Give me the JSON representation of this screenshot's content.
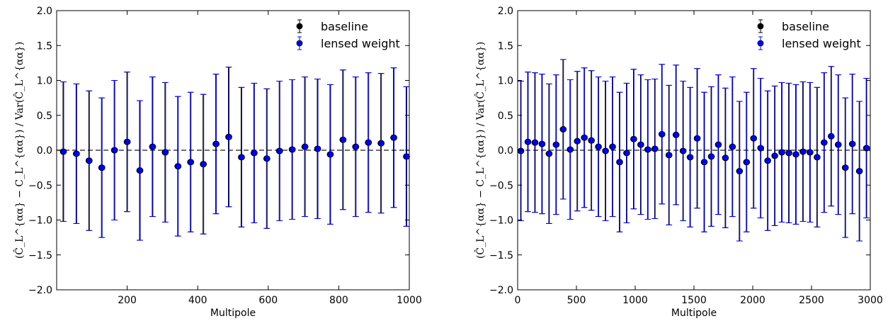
{
  "chart_data": [
    {
      "type": "scatter",
      "title": "",
      "xlabel": "Multipole",
      "ylabel": "(Ĉ_L^{αα} − C_L^{αα}) / Var(Ĉ_L^{αα})",
      "xlim": [
        0,
        1000
      ],
      "ylim": [
        -2.0,
        2.0
      ],
      "xticks": [
        200,
        400,
        600,
        800,
        1000
      ],
      "yticks": [
        -2.0,
        -1.5,
        -1.0,
        -0.5,
        0.0,
        0.5,
        1.0,
        1.5,
        2.0
      ],
      "x_tick_labels": [
        "200",
        "400",
        "600",
        "800",
        "1000"
      ],
      "y_tick_labels": [
        "−2.0",
        "−1.5",
        "−1.0",
        "−0.5",
        "0.0",
        "0.5",
        "1.0",
        "1.5",
        "2.0"
      ],
      "reference_line": 0.0,
      "grid": false,
      "legend_position": "top-right",
      "series": [
        {
          "name": "baseline",
          "color": "#000000",
          "x": [
            18,
            55,
            91,
            127,
            163,
            199,
            235,
            271,
            307,
            343,
            379,
            415,
            451,
            487,
            523,
            559,
            595,
            631,
            667,
            703,
            739,
            775,
            811,
            847,
            883,
            919,
            955,
            991
          ],
          "y": [
            -0.02,
            -0.05,
            -0.15,
            -0.25,
            0.0,
            0.12,
            -0.29,
            0.05,
            -0.03,
            -0.23,
            -0.17,
            -0.2,
            0.09,
            0.19,
            -0.1,
            -0.04,
            -0.12,
            -0.01,
            0.01,
            0.05,
            0.02,
            -0.06,
            0.15,
            0.05,
            0.11,
            0.1,
            0.18,
            -0.09
          ],
          "yerr": [
            1.0,
            1.0,
            1.0,
            1.0,
            1.0,
            1.0,
            1.0,
            1.0,
            1.0,
            1.0,
            1.0,
            1.0,
            1.0,
            1.0,
            1.0,
            1.0,
            1.0,
            1.0,
            1.0,
            1.0,
            1.0,
            1.0,
            1.0,
            1.0,
            1.0,
            1.0,
            1.0,
            1.0
          ]
        },
        {
          "name": "lensed weight",
          "color": "#0000ff",
          "x": [
            20,
            57,
            93,
            129,
            165,
            201,
            237,
            273,
            309,
            345,
            381,
            417,
            453,
            489,
            525,
            561,
            597,
            633,
            669,
            705,
            741,
            777,
            813,
            849,
            885,
            921,
            957,
            993
          ],
          "y": [
            -0.02,
            -0.05,
            -0.15,
            -0.25,
            0.0,
            0.12,
            -0.29,
            0.05,
            -0.03,
            -0.23,
            -0.17,
            -0.2,
            0.09,
            0.19,
            -0.1,
            -0.04,
            -0.12,
            -0.01,
            0.01,
            0.05,
            0.02,
            -0.06,
            0.15,
            0.05,
            0.11,
            0.1,
            0.18,
            -0.09
          ],
          "yerr": [
            1.0,
            1.0,
            1.0,
            1.0,
            1.0,
            1.0,
            1.0,
            1.0,
            1.0,
            1.0,
            1.0,
            1.0,
            1.0,
            1.0,
            1.0,
            1.0,
            1.0,
            1.0,
            1.0,
            1.0,
            1.0,
            1.0,
            1.0,
            1.0,
            1.0,
            1.0,
            1.0,
            1.0
          ]
        }
      ]
    },
    {
      "type": "scatter",
      "title": "",
      "xlabel": "Multipole",
      "ylabel": "(Ĉ_L^{αα} − C_L^{αα}) / Var(Ĉ_L^{αα})",
      "xlim": [
        0,
        3000
      ],
      "ylim": [
        -2.0,
        2.0
      ],
      "xticks": [
        0,
        500,
        1000,
        1500,
        2000,
        2500,
        3000
      ],
      "yticks": [
        -2.0,
        -1.5,
        -1.0,
        -0.5,
        0.0,
        0.5,
        1.0,
        1.5,
        2.0
      ],
      "x_tick_labels": [
        "0",
        "500",
        "1000",
        "1500",
        "2000",
        "2500",
        "3000"
      ],
      "y_tick_labels": [
        "−2.0",
        "−1.5",
        "−1.0",
        "−0.5",
        "0.0",
        "0.5",
        "1.0",
        "1.5",
        "2.0"
      ],
      "reference_line": 0.0,
      "grid": false,
      "legend_position": "top-right",
      "series": [
        {
          "name": "baseline",
          "color": "#000000",
          "x": [
            25,
            85,
            145,
            205,
            265,
            325,
            385,
            445,
            505,
            565,
            625,
            685,
            745,
            805,
            865,
            925,
            985,
            1045,
            1105,
            1165,
            1225,
            1285,
            1345,
            1405,
            1465,
            1525,
            1585,
            1645,
            1705,
            1765,
            1825,
            1885,
            1945,
            2005,
            2065,
            2125,
            2185,
            2245,
            2305,
            2365,
            2425,
            2485,
            2545,
            2605,
            2665,
            2725,
            2785,
            2845,
            2905,
            2965
          ],
          "y": [
            -0.01,
            0.12,
            0.11,
            0.09,
            -0.05,
            0.08,
            0.3,
            0.01,
            0.13,
            0.18,
            0.14,
            0.05,
            -0.01,
            0.05,
            -0.17,
            -0.04,
            0.16,
            0.08,
            0.01,
            0.02,
            0.23,
            -0.07,
            0.22,
            -0.01,
            -0.1,
            0.17,
            -0.17,
            -0.09,
            0.08,
            -0.11,
            0.05,
            -0.3,
            -0.17,
            0.17,
            0.03,
            -0.15,
            -0.08,
            -0.03,
            -0.04,
            -0.06,
            -0.02,
            -0.03,
            -0.1,
            0.11,
            0.2,
            0.08,
            -0.25,
            0.09,
            -0.3,
            0.03
          ],
          "yerr": [
            1.0,
            1.0,
            1.0,
            1.0,
            1.0,
            1.0,
            1.0,
            1.0,
            1.0,
            1.0,
            1.0,
            1.0,
            1.0,
            1.0,
            1.0,
            1.0,
            1.0,
            1.0,
            1.0,
            1.0,
            1.0,
            1.0,
            1.0,
            1.0,
            1.0,
            1.0,
            1.0,
            1.0,
            1.0,
            1.0,
            1.0,
            1.0,
            1.0,
            1.0,
            1.0,
            1.0,
            1.0,
            1.0,
            1.0,
            1.0,
            1.0,
            1.0,
            1.0,
            1.0,
            1.0,
            1.0,
            1.0,
            1.0,
            1.0,
            1.0
          ]
        },
        {
          "name": "lensed weight",
          "color": "#0000ff",
          "x": [
            30,
            90,
            150,
            210,
            270,
            330,
            390,
            450,
            510,
            570,
            630,
            690,
            750,
            810,
            870,
            930,
            990,
            1050,
            1110,
            1170,
            1230,
            1290,
            1350,
            1410,
            1470,
            1530,
            1590,
            1650,
            1710,
            1770,
            1830,
            1890,
            1950,
            2010,
            2070,
            2130,
            2190,
            2250,
            2310,
            2370,
            2430,
            2490,
            2550,
            2610,
            2670,
            2730,
            2790,
            2850,
            2910,
            2970
          ],
          "y": [
            -0.01,
            0.12,
            0.11,
            0.09,
            -0.05,
            0.08,
            0.3,
            0.01,
            0.13,
            0.18,
            0.14,
            0.05,
            -0.01,
            0.05,
            -0.17,
            -0.04,
            0.16,
            0.08,
            0.01,
            0.02,
            0.23,
            -0.07,
            0.22,
            -0.01,
            -0.1,
            0.17,
            -0.17,
            -0.09,
            0.08,
            -0.11,
            0.05,
            -0.3,
            -0.17,
            0.17,
            0.03,
            -0.15,
            -0.08,
            -0.03,
            -0.04,
            -0.06,
            -0.02,
            -0.03,
            -0.1,
            0.11,
            0.2,
            0.08,
            -0.25,
            0.09,
            -0.3,
            0.03
          ],
          "yerr": [
            1.0,
            1.0,
            1.0,
            1.0,
            1.0,
            1.0,
            1.0,
            1.0,
            1.0,
            1.0,
            1.0,
            1.0,
            1.0,
            1.0,
            1.0,
            1.0,
            1.0,
            1.0,
            1.0,
            1.0,
            1.0,
            1.0,
            1.0,
            1.0,
            1.0,
            1.0,
            1.0,
            1.0,
            1.0,
            1.0,
            1.0,
            1.0,
            1.0,
            1.0,
            1.0,
            1.0,
            1.0,
            1.0,
            1.0,
            1.0,
            1.0,
            1.0,
            1.0,
            1.0,
            1.0,
            1.0,
            1.0,
            1.0,
            1.0,
            1.0
          ]
        }
      ]
    }
  ]
}
